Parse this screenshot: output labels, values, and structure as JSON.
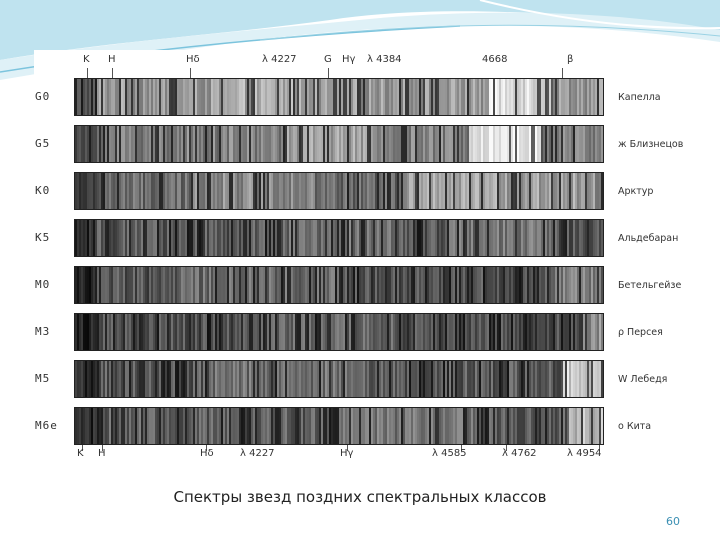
{
  "caption": "Спектры звезд поздних спектральных классов",
  "page_number": "60",
  "colors": {
    "accent": "#3a8fb3",
    "header_wave": "#bfe3ef"
  },
  "top_lines": [
    {
      "text": "K"
    },
    {
      "text": "H"
    },
    {
      "text": "Hδ"
    },
    {
      "text": "λ 4227"
    },
    {
      "text": "G"
    },
    {
      "text": "Hγ"
    },
    {
      "text": "λ 4384"
    },
    {
      "text": "4668"
    },
    {
      "text": "β"
    }
  ],
  "bottom_lines": [
    {
      "text": "K"
    },
    {
      "text": "H"
    },
    {
      "text": "Hδ"
    },
    {
      "text": "λ 4227"
    },
    {
      "text": "Hγ"
    },
    {
      "text": "λ 4585"
    },
    {
      "text": "λ 4762"
    },
    {
      "text": "λ 4954"
    }
  ],
  "spectra": [
    {
      "class": "G0",
      "star": "Капелла"
    },
    {
      "class": "G5",
      "star": "ж Близнецов"
    },
    {
      "class": "K0",
      "star": "Арктур"
    },
    {
      "class": "K5",
      "star": "Альдебаран"
    },
    {
      "class": "M0",
      "star": "Бетельгейзе"
    },
    {
      "class": "M3",
      "star": "ρ Персея"
    },
    {
      "class": "M5",
      "star": "W Лебедя"
    },
    {
      "class": "M6e",
      "star": "o Кита"
    }
  ]
}
